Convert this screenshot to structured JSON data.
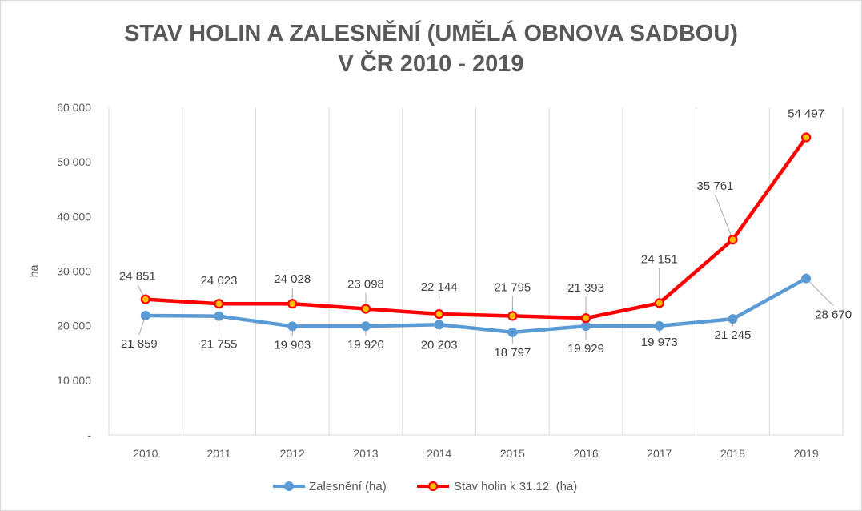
{
  "chart_data": {
    "type": "line",
    "title_line1": "STAV HOLIN A ZALESNĚNÍ (UMĚLÁ OBNOVA SADBOU)",
    "title_line2": "V ČR 2010 - 2019",
    "xlabel": "",
    "ylabel": "ha",
    "ylim": [
      0,
      60000
    ],
    "yticks": [
      0,
      10000,
      20000,
      30000,
      40000,
      50000,
      60000
    ],
    "ytick_labels": [
      "-",
      "10 000",
      "20 000",
      "30 000",
      "40 000",
      "50 000",
      "60 000"
    ],
    "categories": [
      "2010",
      "2011",
      "2012",
      "2013",
      "2014",
      "2015",
      "2016",
      "2017",
      "2018",
      "2019"
    ],
    "grid": "vertical",
    "legend_position": "bottom",
    "series": [
      {
        "name": "Zalesnění (ha)",
        "color": "#5b9bd5",
        "marker_fill": "#5b9bd5",
        "values": [
          21859,
          21755,
          19903,
          19920,
          20203,
          18797,
          19929,
          19973,
          21245,
          28670
        ],
        "labels": [
          "21 859",
          "21 755",
          "19 903",
          "19 920",
          "20 203",
          "18 797",
          "19 929",
          "19 973",
          "21 245",
          "28 670"
        ]
      },
      {
        "name": "Stav holin k 31.12. (ha)",
        "color": "#ff0000",
        "marker_fill": "#ffc000",
        "values": [
          24851,
          24023,
          24028,
          23098,
          22144,
          21795,
          21393,
          24151,
          35761,
          54497
        ],
        "labels": [
          "24 851",
          "24 023",
          "24 028",
          "23 098",
          "22 144",
          "21 795",
          "21 393",
          "24 151",
          "35 761",
          "54 497"
        ]
      }
    ]
  }
}
